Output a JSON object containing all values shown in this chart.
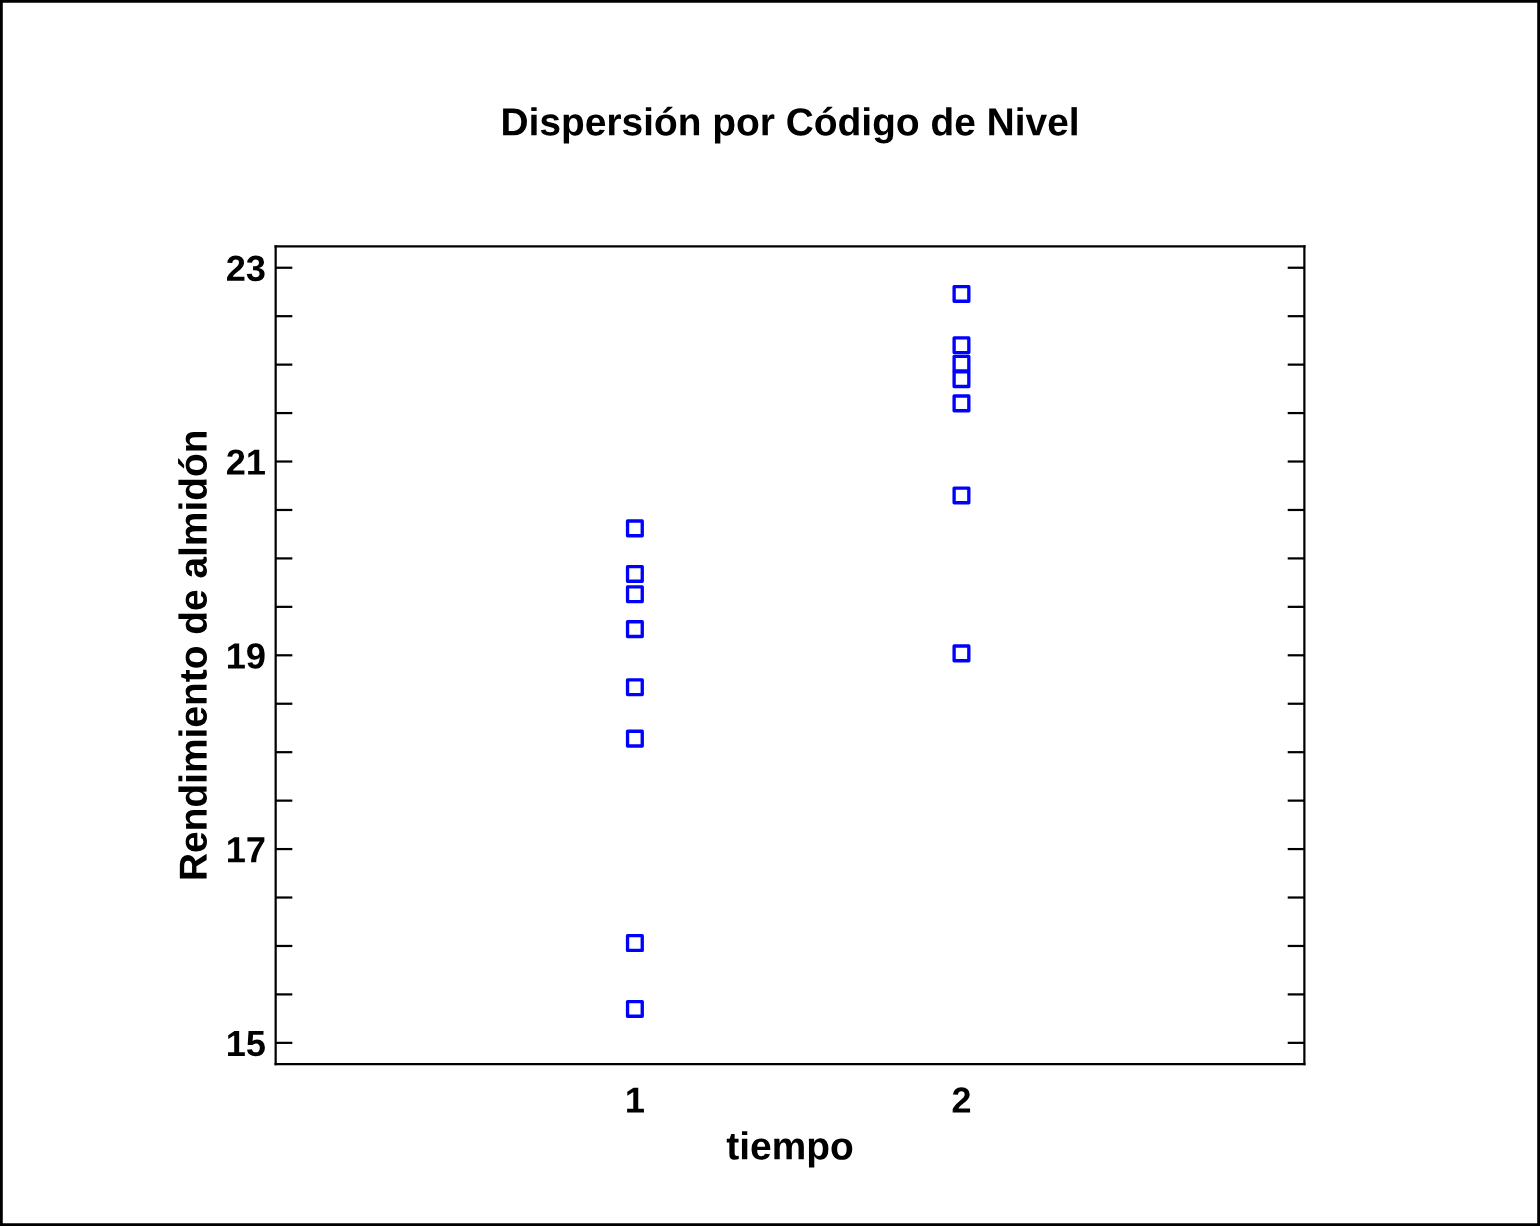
{
  "chart_data": {
    "type": "scatter",
    "title": "Dispersión por Código de Nivel",
    "xlabel": "tiempo",
    "ylabel": "Rendimiento de almidón",
    "categories": [
      "1",
      "2"
    ],
    "series": [
      {
        "color": "#0000ff",
        "x": [
          "1",
          "1",
          "1",
          "1",
          "1",
          "1",
          "1",
          "1"
        ],
        "values": [
          20.31,
          19.84,
          19.63,
          19.27,
          18.67,
          18.14,
          16.03,
          15.35
        ]
      },
      {
        "color": "#0000ff",
        "x": [
          "2",
          "2",
          "2",
          "2",
          "2",
          "2",
          "2"
        ],
        "values": [
          22.73,
          22.2,
          22.01,
          21.85,
          21.6,
          20.65,
          19.02
        ]
      }
    ],
    "ylim": [
      14.78,
      23.22
    ],
    "yticks": [
      15,
      {
        "value": 15.5,
        "label": null
      },
      {
        "value": 16,
        "label": null
      },
      {
        "value": 16.5,
        "label": null
      },
      17,
      {
        "value": 17.5,
        "label": null
      },
      {
        "value": 18,
        "label": null
      },
      {
        "value": 18.5,
        "label": null
      },
      19,
      {
        "value": 19.5,
        "label": null
      },
      {
        "value": 20,
        "label": null
      },
      {
        "value": 20.5,
        "label": null
      },
      21,
      {
        "value": 21.5,
        "label": null
      },
      {
        "value": 22,
        "label": null
      },
      {
        "value": 22.5,
        "label": null
      },
      23
    ],
    "marker": "square",
    "grid": false,
    "legend": false
  }
}
